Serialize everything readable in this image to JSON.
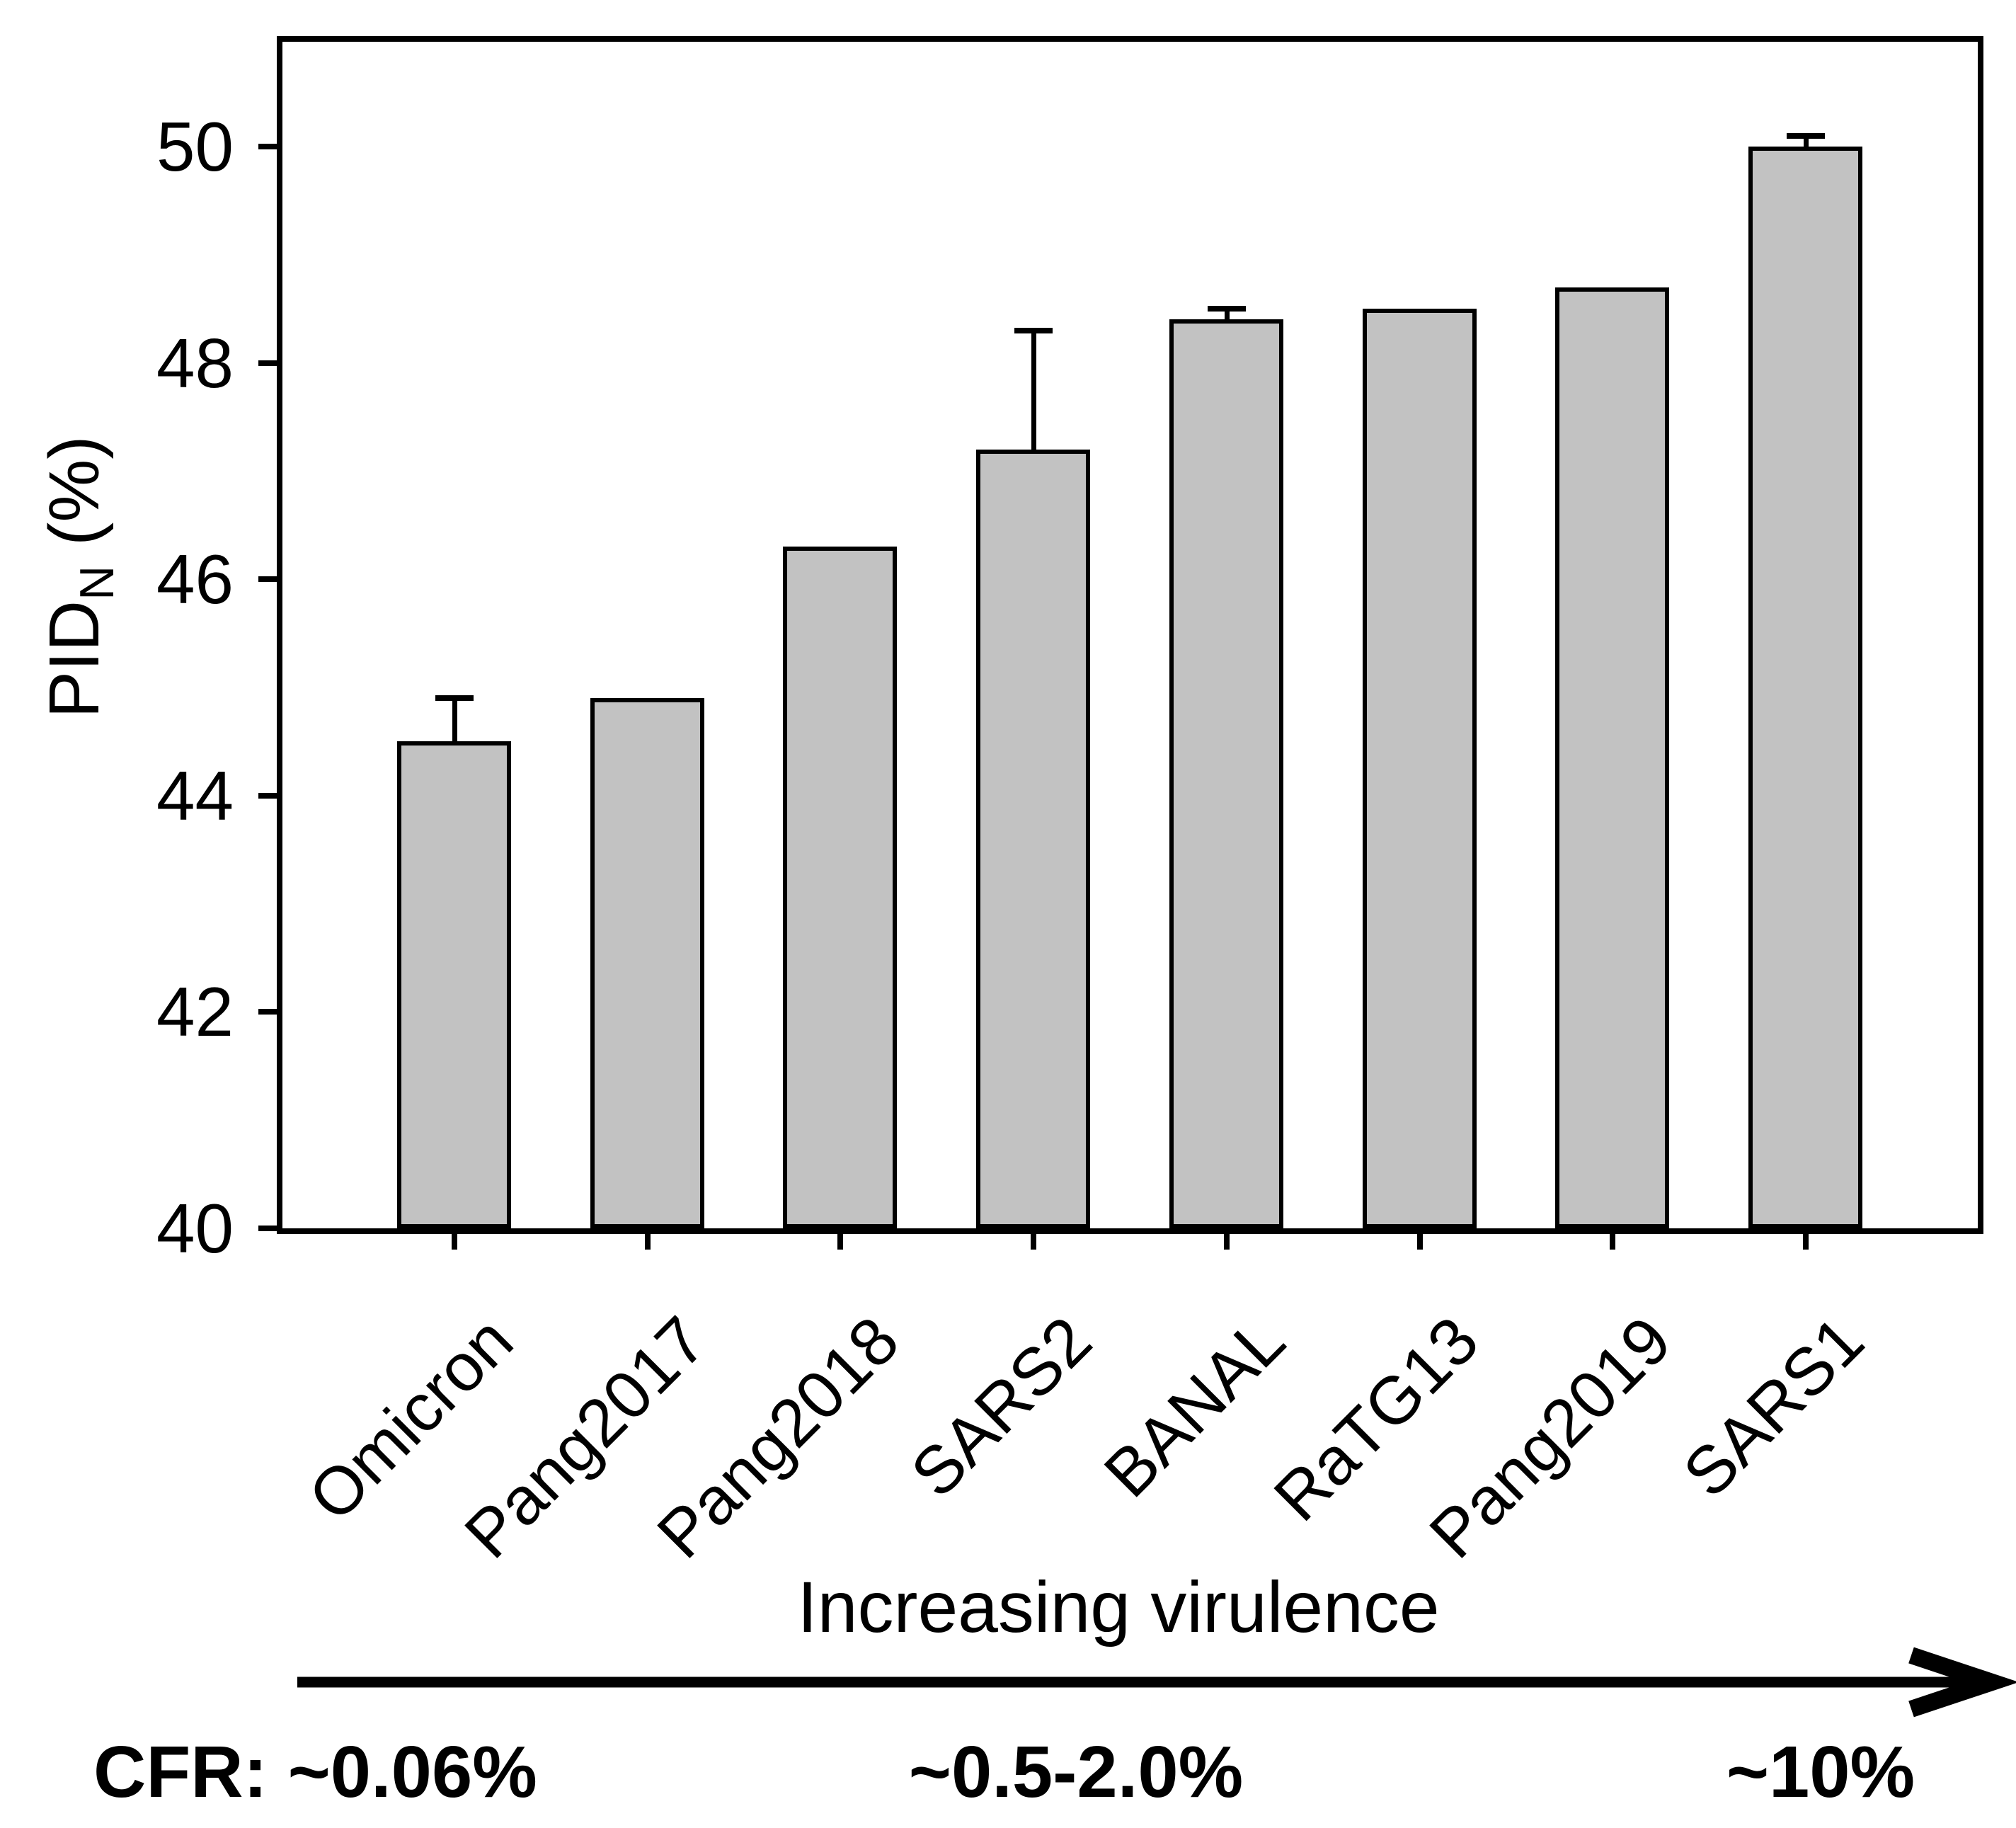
{
  "chart_data": {
    "type": "bar",
    "title": "",
    "categories": [
      "Omicron",
      "Pang2017",
      "Pang2018",
      "SARS2",
      "BANAL",
      "RaTG13",
      "Pang2019",
      "SARS1"
    ],
    "values": [
      44.5,
      44.9,
      46.3,
      47.2,
      48.4,
      48.5,
      48.7,
      50.0
    ],
    "errors_plus": [
      0.4,
      0,
      0,
      1.1,
      0.1,
      0,
      0,
      0.1
    ],
    "xlabel": "",
    "ylabel": "PID_N (%)",
    "ylabel_main": "PID",
    "ylabel_sub": "N",
    "ylabel_suffix": " (%)",
    "yticks": [
      40,
      42,
      44,
      46,
      48,
      50
    ],
    "ylim": [
      40,
      51
    ],
    "grid": false,
    "legend_position": "none",
    "bar_color": "#c2c2c2",
    "bar_border_color": "#000000",
    "axis_color": "#000000"
  },
  "annotations": {
    "virulence_label": "Increasing virulence",
    "cfr_prefix": "CFR:",
    "cfr_low": "~0.06%",
    "cfr_mid": "~0.5-2.0%",
    "cfr_high": "~10%"
  }
}
